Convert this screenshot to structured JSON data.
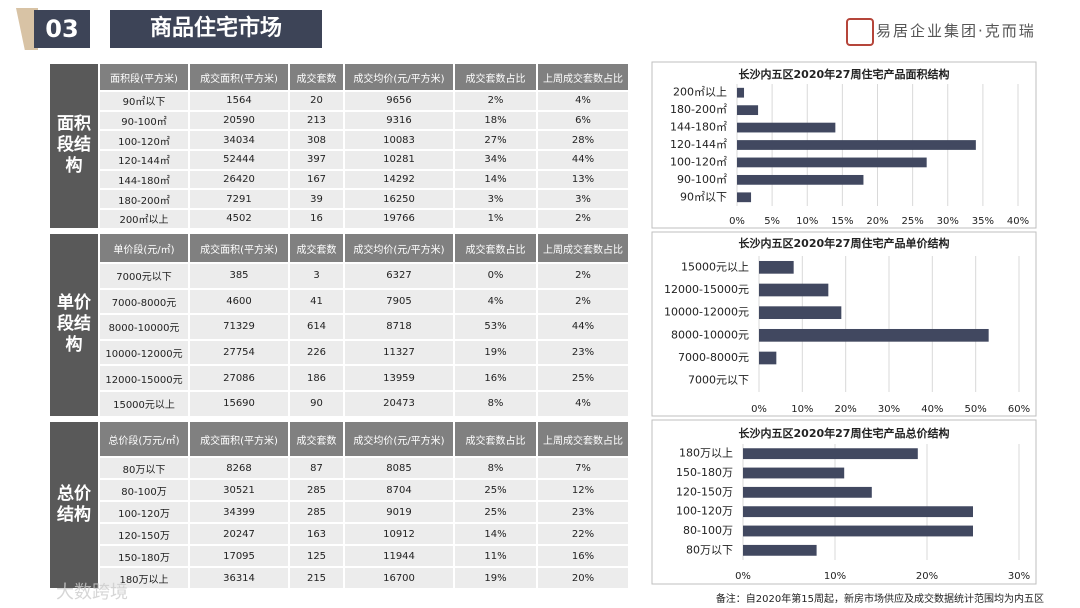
{
  "header": {
    "number": "03",
    "title": "商品住宅市场",
    "logo": "易居企业集团·克而瑞"
  },
  "tables": [
    {
      "group": "面积段结构",
      "columns": [
        "面积段(平方米)",
        "成交面积(平方米)",
        "成交套数",
        "成交均价(元/平方米)",
        "成交套数占比",
        "上周成交套数占比"
      ],
      "rows": [
        [
          "90㎡以下",
          "1564",
          "20",
          "9656",
          "2%",
          "4%"
        ],
        [
          "90-100㎡",
          "20590",
          "213",
          "9316",
          "18%",
          "6%"
        ],
        [
          "100-120㎡",
          "34034",
          "308",
          "10083",
          "27%",
          "28%"
        ],
        [
          "120-144㎡",
          "52444",
          "397",
          "10281",
          "34%",
          "44%"
        ],
        [
          "144-180㎡",
          "26420",
          "167",
          "14292",
          "14%",
          "13%"
        ],
        [
          "180-200㎡",
          "7291",
          "39",
          "16250",
          "3%",
          "3%"
        ],
        [
          "200㎡以上",
          "4502",
          "16",
          "19766",
          "1%",
          "2%"
        ]
      ]
    },
    {
      "group": "单价段结构",
      "columns": [
        "单价段(元/㎡)",
        "成交面积(平方米)",
        "成交套数",
        "成交均价(元/平方米)",
        "成交套数占比",
        "上周成交套数占比"
      ],
      "rows": [
        [
          "7000元以下",
          "385",
          "3",
          "6327",
          "0%",
          "2%"
        ],
        [
          "7000-8000元",
          "4600",
          "41",
          "7905",
          "4%",
          "2%"
        ],
        [
          "8000-10000元",
          "71329",
          "614",
          "8718",
          "53%",
          "44%"
        ],
        [
          "10000-12000元",
          "27754",
          "226",
          "11327",
          "19%",
          "23%"
        ],
        [
          "12000-15000元",
          "27086",
          "186",
          "13959",
          "16%",
          "25%"
        ],
        [
          "15000元以上",
          "15690",
          "90",
          "20473",
          "8%",
          "4%"
        ]
      ]
    },
    {
      "group": "总价结构",
      "columns": [
        "总价段(万元/㎡)",
        "成交面积(平方米)",
        "成交套数",
        "成交均价(元/平方米)",
        "成交套数占比",
        "上周成交套数占比"
      ],
      "rows": [
        [
          "80万以下",
          "8268",
          "87",
          "8085",
          "8%",
          "7%"
        ],
        [
          "80-100万",
          "30521",
          "285",
          "8704",
          "25%",
          "12%"
        ],
        [
          "100-120万",
          "34399",
          "285",
          "9019",
          "25%",
          "23%"
        ],
        [
          "120-150万",
          "20247",
          "163",
          "10912",
          "14%",
          "22%"
        ],
        [
          "150-180万",
          "17095",
          "125",
          "11944",
          "11%",
          "16%"
        ],
        [
          "180万以上",
          "36314",
          "215",
          "16700",
          "19%",
          "20%"
        ]
      ]
    }
  ],
  "chart_data": [
    {
      "type": "bar",
      "orientation": "horizontal",
      "title": "长沙内五区2020年27周住宅产品面积结构",
      "color": "#414860",
      "grid": true,
      "categories": [
        "200㎡以上",
        "180-200㎡",
        "144-180㎡",
        "120-144㎡",
        "100-120㎡",
        "90-100㎡",
        "90㎡以下"
      ],
      "values": [
        1,
        3,
        14,
        34,
        27,
        18,
        2
      ],
      "xlim": [
        0,
        40
      ],
      "xticks": [
        {
          "value": 0,
          "label": "0%"
        },
        {
          "value": 5,
          "label": "5%"
        },
        {
          "value": 10,
          "label": "10%"
        },
        {
          "value": 15,
          "label": "15%"
        },
        {
          "value": 20,
          "label": "20%"
        },
        {
          "value": 25,
          "label": "25%"
        },
        {
          "value": 30,
          "label": "30%"
        },
        {
          "value": 35,
          "label": "35%"
        },
        {
          "value": 40,
          "label": "40%"
        }
      ]
    },
    {
      "type": "bar",
      "orientation": "horizontal",
      "title": "长沙内五区2020年27周住宅产品单价结构",
      "color": "#414860",
      "grid": true,
      "categories": [
        "15000元以上",
        "12000-15000元",
        "10000-12000元",
        "8000-10000元",
        "7000-8000元",
        "7000元以下"
      ],
      "values": [
        8,
        16,
        19,
        53,
        4,
        0
      ],
      "xlim": [
        0,
        60
      ],
      "xticks": [
        {
          "value": 0,
          "label": "0%"
        },
        {
          "value": 10,
          "label": "10%"
        },
        {
          "value": 20,
          "label": "20%"
        },
        {
          "value": 30,
          "label": "30%"
        },
        {
          "value": 40,
          "label": "40%"
        },
        {
          "value": 50,
          "label": "50%"
        },
        {
          "value": 60,
          "label": "60%"
        }
      ]
    },
    {
      "type": "bar",
      "orientation": "horizontal",
      "title": "长沙内五区2020年27周住宅产品总价结构",
      "color": "#414860",
      "grid": true,
      "categories": [
        "180万以上",
        "150-180万",
        "120-150万",
        "100-120万",
        "80-100万",
        "80万以下"
      ],
      "values": [
        19,
        11,
        14,
        25,
        25,
        8
      ],
      "xlim": [
        0,
        30
      ],
      "xticks": [
        {
          "value": 0,
          "label": "0%"
        },
        {
          "value": 10,
          "label": "10%"
        },
        {
          "value": 20,
          "label": "20%"
        },
        {
          "value": 30,
          "label": "30%"
        }
      ]
    }
  ],
  "footnote": "备注：自2020年第15周起，新房市场供应及成交数据统计范围均为内五区",
  "watermark": "大数跨境"
}
